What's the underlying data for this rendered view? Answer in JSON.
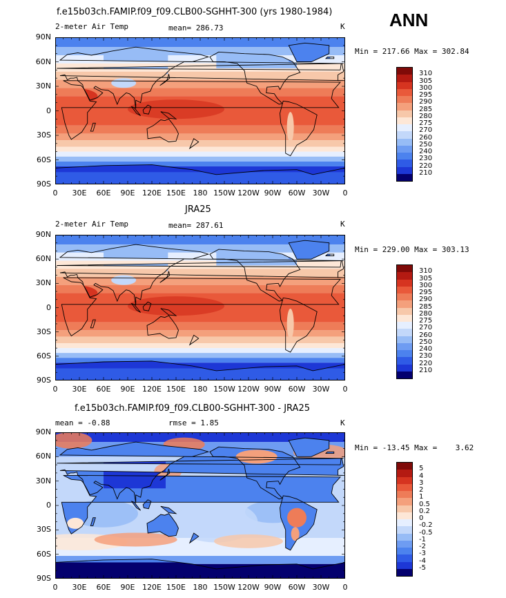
{
  "main_title": "ANN",
  "panels": [
    {
      "key": "model",
      "title": "f.e15b03ch.FAMIP.f09_f09.CLB00-SGHHT-300 (yrs 1980-1984)",
      "left_label": "2-meter Air Temp",
      "mid_label": "mean= 286.73",
      "right_label": "K",
      "min_max": "Min = 217.66 Max = 302.84",
      "levels": [
        "310",
        "305",
        "300",
        "295",
        "290",
        "285",
        "280",
        "275",
        "270",
        "260",
        "250",
        "240",
        "230",
        "220",
        "210"
      ]
    },
    {
      "key": "obs",
      "title": "JRA25",
      "left_label": "2-meter Air Temp",
      "mid_label": "mean= 287.61",
      "right_label": "K",
      "min_max": "Min = 229.00 Max = 303.13",
      "levels": [
        "310",
        "305",
        "300",
        "295",
        "290",
        "285",
        "280",
        "275",
        "270",
        "260",
        "250",
        "240",
        "230",
        "220",
        "210"
      ]
    },
    {
      "key": "diff",
      "title": "f.e15b03ch.FAMIP.f09_f09.CLB00-SGHHT-300 - JRA25",
      "left_label": "mean =   -0.88",
      "mid_label": "rmse =    1.85",
      "right_label": "K",
      "min_max": "Min = -13.45 Max =    3.62",
      "levels": [
        "5",
        "4",
        "3",
        "2",
        "1",
        "0.5",
        "0.2",
        "0",
        "-0.2",
        "-0.5",
        "-1",
        "-2",
        "-3",
        "-4",
        "-5"
      ]
    }
  ],
  "lat_ticks": [
    "90N",
    "60N",
    "30N",
    "0",
    "30S",
    "60S",
    "90S"
  ],
  "lon_ticks": [
    "0",
    "30E",
    "60E",
    "90E",
    "120E",
    "150E",
    "180",
    "150W",
    "120W",
    "90W",
    "60W",
    "30W",
    "0"
  ],
  "colors": {
    "scale": [
      "#04006e",
      "#1d37d6",
      "#2f5be6",
      "#4c82ee",
      "#6e9cf2",
      "#97bcf6",
      "#c3d8fa",
      "#e6efff",
      "#fde7d7",
      "#f7c8aa",
      "#f4a07c",
      "#ee7c58",
      "#e9593a",
      "#d63420",
      "#b41a12",
      "#7f0a08"
    ]
  }
}
